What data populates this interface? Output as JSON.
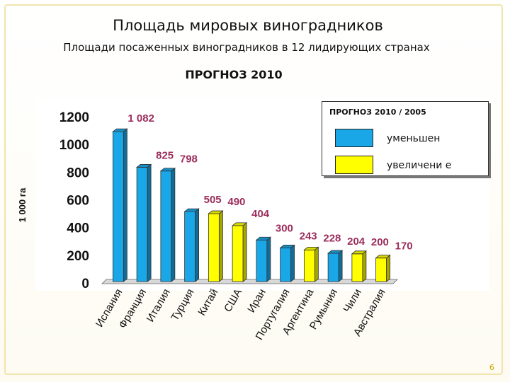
{
  "title": "Площадь мировых виноградников",
  "subtitle": "Площади посаженных виноградников в 12 лидирующих странах",
  "forecast_label": "ПРОГНОЗ 2010",
  "page_number": "6",
  "legend": {
    "title": "ПРОГНОЗ 2010 / 2005",
    "items": [
      {
        "label": "уменьшен",
        "color": "#1aa7e8"
      },
      {
        "label": "увеличени е",
        "color": "#ffff00"
      }
    ]
  },
  "colors": {
    "decrease": "#1aa7e8",
    "increase": "#ffff00",
    "value_label": "#9b2d5c"
  },
  "chart_data": {
    "type": "bar",
    "title": "",
    "xlabel": "",
    "ylabel": "1 000 га",
    "ylim": [
      0,
      1200
    ],
    "yticks": [
      0,
      200,
      400,
      600,
      800,
      1000,
      1200
    ],
    "grid": false,
    "legend_position": "top-right",
    "categories": [
      "Испания",
      "Франция",
      "Италия",
      "Турция",
      "Китай",
      "США",
      "Иран",
      "Португалия",
      "Аргентина",
      "Румыния",
      "Чили",
      "Австралия"
    ],
    "values": [
      1082,
      825,
      798,
      505,
      490,
      404,
      300,
      243,
      228,
      204,
      200,
      170
    ],
    "value_labels": [
      "1 082",
      "825",
      "798",
      "505",
      "490",
      "404",
      "300",
      "243",
      "228",
      "204",
      "200",
      "170"
    ],
    "trend": [
      "decrease",
      "decrease",
      "decrease",
      "decrease",
      "increase",
      "increase",
      "decrease",
      "decrease",
      "increase",
      "decrease",
      "increase",
      "increase"
    ]
  }
}
